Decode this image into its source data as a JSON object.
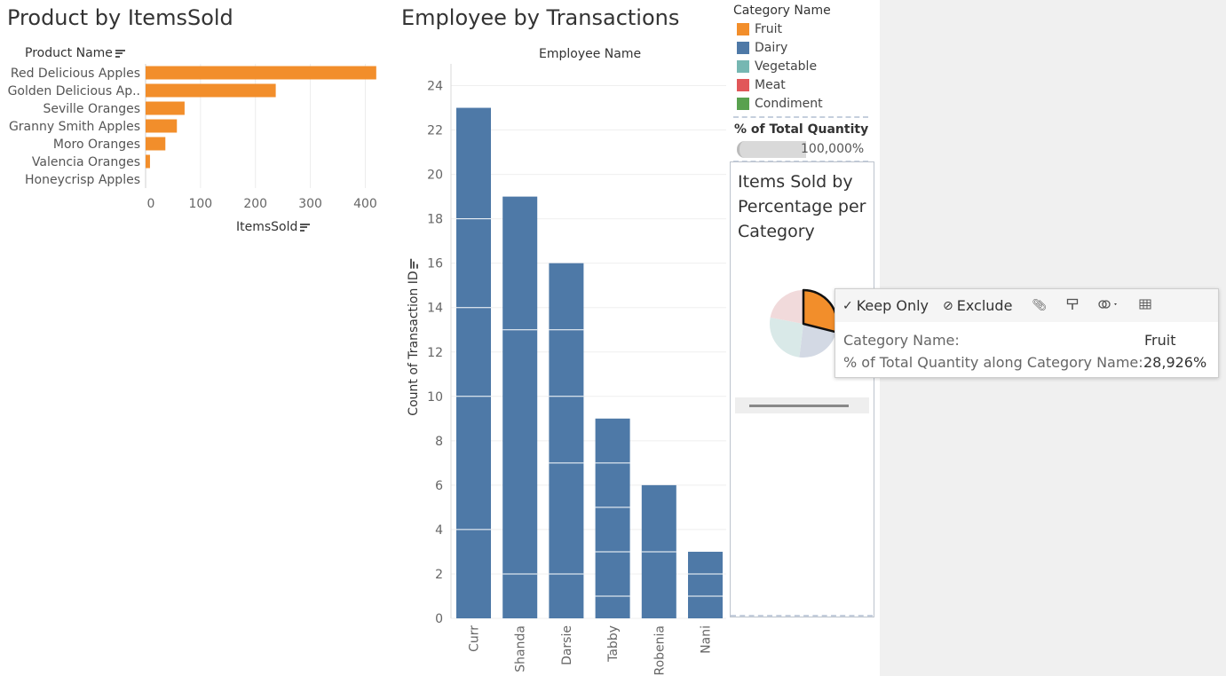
{
  "product_sheet": {
    "title": "Product by ItemsSold",
    "row_header": "Product Name",
    "x_axis_title": "ItemsSold"
  },
  "employee_sheet": {
    "title": "Employee by Transactions",
    "column_header": "Employee Name",
    "y_axis_title": "Count of Transaction ID"
  },
  "legend": {
    "title": "Category Name",
    "items": [
      {
        "label": "Fruit",
        "color": "#f28e2b"
      },
      {
        "label": "Dairy",
        "color": "#4e79a7"
      },
      {
        "label": "Vegetable",
        "color": "#76b7b2"
      },
      {
        "label": "Meat",
        "color": "#e15759"
      },
      {
        "label": "Condiment",
        "color": "#59a14f"
      }
    ]
  },
  "filter": {
    "title": "% of Total Quantity",
    "value": "100,000%",
    "fill_fraction": 1.0
  },
  "pie_sheet": {
    "title": "Items Sold by Percentage per Category"
  },
  "tooltip": {
    "keep_only": "Keep Only",
    "exclude": "Exclude",
    "row1_label": "Category Name:",
    "row1_value": "Fruit",
    "row2_label": "% of Total Quantity along Category Name:",
    "row2_value": "28,926%"
  },
  "chart_data": [
    {
      "type": "bar",
      "orientation": "horizontal",
      "title": "Product by ItemsSold",
      "xlabel": "ItemsSold",
      "ylabel": "Product Name",
      "categories": [
        "Red Delicious Apples",
        "Golden Delicious Ap..",
        "Seville Oranges",
        "Granny Smith Apples",
        "Moro Oranges",
        "Valencia Oranges",
        "Honeycrisp Apples"
      ],
      "values": [
        420,
        237,
        71,
        57,
        36,
        8,
        0
      ],
      "xlim": [
        0,
        430
      ],
      "xticks": [
        0,
        100,
        200,
        300,
        400
      ],
      "color": "#f28e2b"
    },
    {
      "type": "bar",
      "title": "Employee by Transactions",
      "xlabel": "Employee Name",
      "ylabel": "Count of Transaction ID",
      "categories": [
        "Curr",
        "Shanda",
        "Darsie",
        "Tabby",
        "Robenia",
        "Nani"
      ],
      "values": [
        23,
        19,
        16,
        9,
        6,
        3
      ],
      "segment_breaks": [
        [
          4,
          10,
          14,
          18
        ],
        [
          2,
          13
        ],
        [
          2,
          7,
          10,
          13
        ],
        [
          1,
          3,
          5,
          7
        ],
        [
          3
        ],
        [
          1,
          2
        ]
      ],
      "ylim": [
        0,
        24.5
      ],
      "yticks": [
        0,
        2,
        4,
        6,
        8,
        10,
        12,
        14,
        16,
        18,
        20,
        22,
        24
      ],
      "color": "#4e79a7"
    },
    {
      "type": "pie",
      "title": "Items Sold by Percentage per Category",
      "categories": [
        "Fruit",
        "Dairy",
        "Vegetable",
        "Meat"
      ],
      "values": [
        28.926,
        23,
        26,
        22
      ],
      "colors": [
        "#f28e2b",
        "#4e79a7",
        "#76b7b2",
        "#e15759"
      ],
      "highlighted": "Fruit"
    }
  ]
}
